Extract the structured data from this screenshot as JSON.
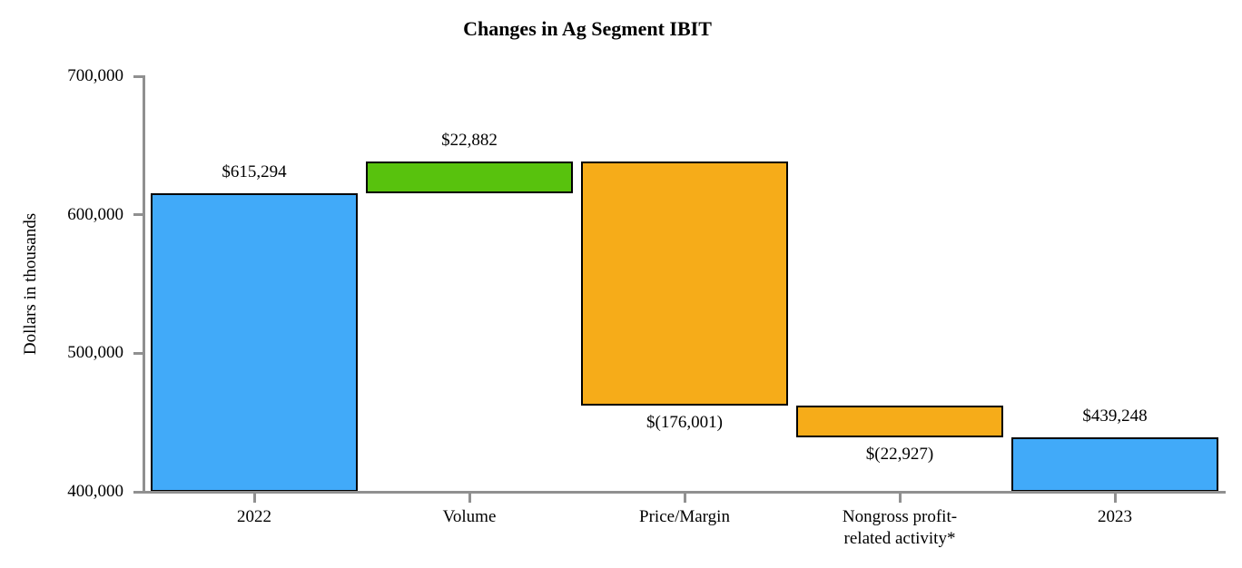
{
  "chart_data": {
    "type": "waterfall",
    "title": "Changes in Ag Segment IBIT",
    "ylabel": "Dollars in thousands",
    "xlabel": "",
    "ylim": [
      400000,
      700000
    ],
    "ytick_interval": 100000,
    "ytick_labels": [
      "400,000",
      "500,000",
      "600,000",
      "700,000"
    ],
    "grid": false,
    "legend": "none",
    "categories": [
      "2022",
      "Volume",
      "Price/Margin",
      "Nongross profit-\nrelated activity*",
      "2023"
    ],
    "bars": [
      {
        "category": "2022",
        "kind": "total",
        "start": 400000,
        "end": 615294,
        "value": 615294,
        "label": "$615,294",
        "label_position": "above",
        "color_key": "total"
      },
      {
        "category": "Volume",
        "kind": "increase",
        "start": 615294,
        "end": 638176,
        "value": 22882,
        "label": "$22,882",
        "label_position": "above",
        "color_key": "increase"
      },
      {
        "category": "Price/Margin",
        "kind": "decrease",
        "start": 638176,
        "end": 462175,
        "value": -176001,
        "label": "$(176,001)",
        "label_position": "below",
        "color_key": "decrease"
      },
      {
        "category": "Nongross profit-\nrelated activity*",
        "kind": "decrease",
        "start": 462175,
        "end": 439248,
        "value": -22927,
        "label": "$(22,927)",
        "label_position": "below",
        "color_key": "decrease"
      },
      {
        "category": "2023",
        "kind": "total",
        "start": 400000,
        "end": 439248,
        "value": 439248,
        "label": "$439,248",
        "label_position": "above",
        "color_key": "total"
      }
    ],
    "colors": {
      "total": "#41AAF9",
      "increase": "#58C20D",
      "decrease": "#F6AC19",
      "axis": "#909090",
      "bar_border": "#000000",
      "text": "#000000"
    }
  }
}
